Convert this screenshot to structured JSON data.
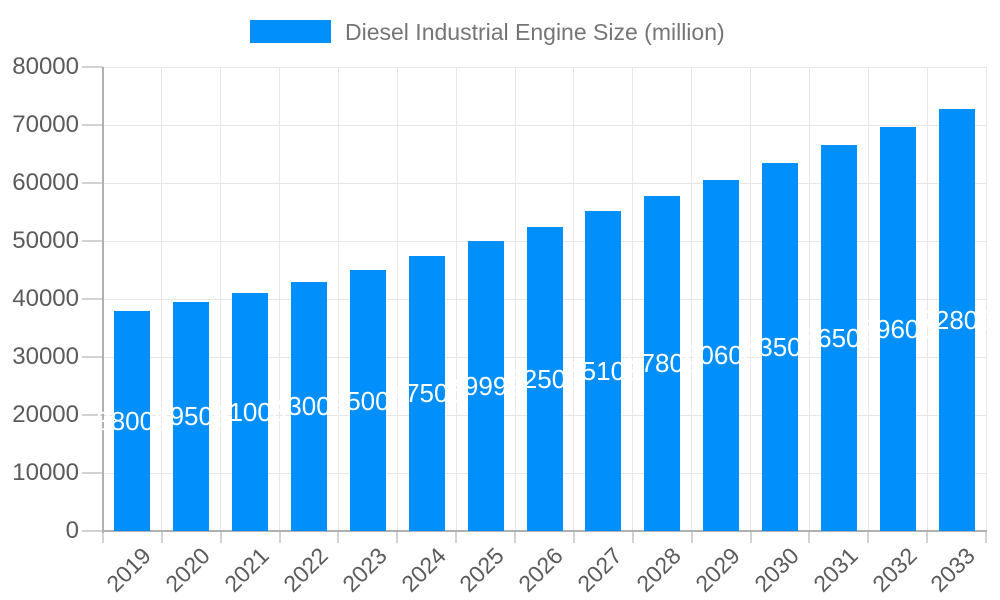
{
  "chart_data": {
    "type": "bar",
    "title": "Diesel Industrial Engine Size (million)",
    "legend": {
      "label": "Diesel Industrial Engine Size (million)",
      "position": "top"
    },
    "categories": [
      "2019",
      "2020",
      "2021",
      "2022",
      "2023",
      "2024",
      "2025",
      "2026",
      "2027",
      "2028",
      "2029",
      "2030",
      "2031",
      "2032",
      "2033"
    ],
    "values": [
      38000,
      39500,
      41000,
      43000,
      45000,
      47500,
      49999,
      52500,
      55100,
      57800,
      60600,
      63500,
      66500,
      69600,
      72800
    ],
    "xlabel": "",
    "ylabel": "",
    "ylim": [
      0,
      80000
    ],
    "y_tick_step": 10000,
    "y_tick_labels": [
      "0",
      "10000",
      "20000",
      "30000",
      "40000",
      "50000",
      "60000",
      "70000",
      "80000"
    ],
    "grid": true,
    "legend_position": "top",
    "colors": {
      "bar": "#008FFB",
      "bar_label": "#FFFFFF",
      "axis_text": "#5B5B5B",
      "legend_text": "#757575",
      "gridline": "#E7E7E7",
      "axis_line": "#B0B0B0",
      "tick": "#D2D2D2",
      "background": "#FFFFFF"
    }
  }
}
